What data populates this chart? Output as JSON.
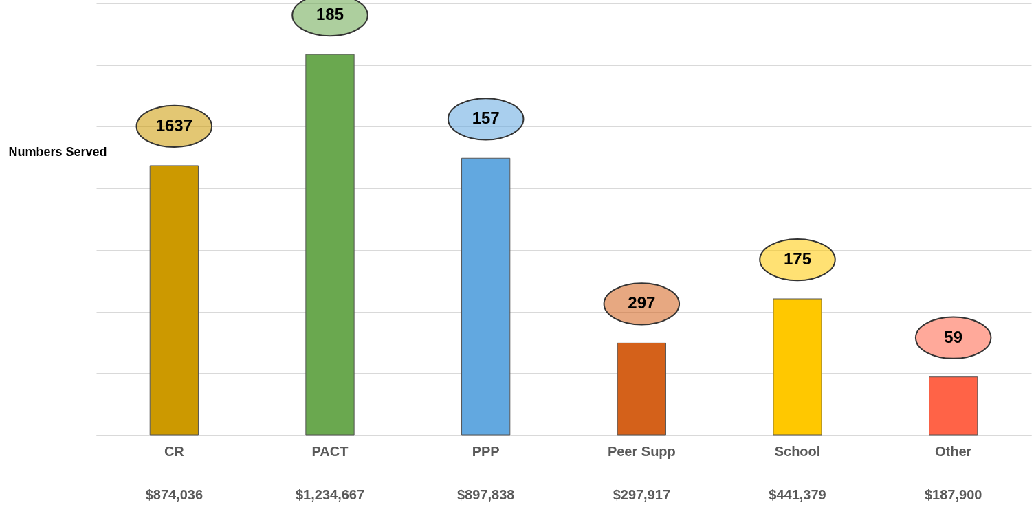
{
  "chart_data": {
    "type": "bar",
    "ylabel": "Numbers Served",
    "categories": [
      "CR",
      "PACT",
      "PPP",
      "Peer Supp",
      "School",
      "Other"
    ],
    "values": [
      874036,
      1234667,
      897838,
      297917,
      441379,
      187900
    ],
    "value_labels": [
      "$874,036",
      "$1,234,667",
      "$897,838",
      "$297,917",
      "$441,379",
      "$187,900"
    ],
    "colors": [
      "#cc9900",
      "#6aa84f",
      "#62a8e0",
      "#d4611a",
      "#ffc800",
      "#ff6347"
    ],
    "ylim": [
      0,
      1400000
    ],
    "yticks": [
      {
        "value": 0,
        "label": null
      },
      {
        "value": 200000,
        "label": null
      },
      {
        "value": 400000,
        "label": null
      },
      {
        "value": 600000,
        "label": null
      },
      {
        "value": 800000,
        "label": null
      },
      {
        "value": 1000000,
        "label": null
      },
      {
        "value": 1200000,
        "label": null
      },
      {
        "value": 1400000,
        "label": null
      }
    ],
    "tick_labels": "x",
    "grid": "y",
    "annotations": [
      "1637",
      "185",
      "157",
      "297",
      "175",
      "59"
    ]
  }
}
